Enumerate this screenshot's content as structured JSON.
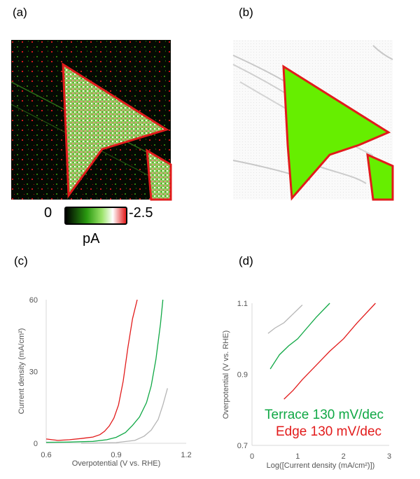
{
  "panels": {
    "a": {
      "label": "(a)"
    },
    "b": {
      "label": "(b)"
    },
    "c": {
      "label": "(c)"
    },
    "d": {
      "label": "(d)"
    }
  },
  "colorbar": {
    "min_label": "0",
    "max_label": "-2.5",
    "unit": "pA"
  },
  "colors": {
    "terrace": "#10a845",
    "edge": "#e21b1b",
    "reference": "#b5b5b5",
    "mask_fill": "#66ee00",
    "mask_outline": "#e21b1b"
  },
  "chart_data": [
    {
      "type": "line",
      "panel": "c",
      "xlabel": "Overpotential (V vs. RHE)",
      "ylabel": "Current density (mA/cm²)",
      "xlim": [
        0.6,
        1.2
      ],
      "ylim": [
        0,
        60
      ],
      "xticks": [
        0.6,
        0.9,
        1.2
      ],
      "yticks": [
        0,
        30,
        60
      ],
      "grid": false,
      "series": [
        {
          "color": "#e21b1b",
          "points": [
            [
              0.6,
              1.8
            ],
            [
              0.65,
              1.2
            ],
            [
              0.7,
              1.5
            ],
            [
              0.75,
              2.0
            ],
            [
              0.8,
              2.6
            ],
            [
              0.83,
              3.6
            ],
            [
              0.85,
              5.0
            ],
            [
              0.87,
              7.2
            ],
            [
              0.89,
              10.5
            ],
            [
              0.91,
              16
            ],
            [
              0.93,
              26
            ],
            [
              0.95,
              40
            ],
            [
              0.97,
              52
            ],
            [
              0.99,
              60
            ]
          ]
        },
        {
          "color": "#10a845",
          "points": [
            [
              0.6,
              0.4
            ],
            [
              0.7,
              0.5
            ],
            [
              0.8,
              0.8
            ],
            [
              0.86,
              1.5
            ],
            [
              0.9,
              2.5
            ],
            [
              0.94,
              4.5
            ],
            [
              0.97,
              7.5
            ],
            [
              1.0,
              11
            ],
            [
              1.03,
              17
            ],
            [
              1.05,
              24
            ],
            [
              1.07,
              35
            ],
            [
              1.09,
              50
            ],
            [
              1.1,
              60
            ]
          ]
        },
        {
          "color": "#b5b5b5",
          "points": [
            [
              0.75,
              0
            ],
            [
              0.9,
              0.3
            ],
            [
              0.98,
              1.2
            ],
            [
              1.02,
              3.0
            ],
            [
              1.05,
              5.5
            ],
            [
              1.08,
              10
            ],
            [
              1.1,
              16
            ],
            [
              1.12,
              23
            ]
          ]
        }
      ]
    },
    {
      "type": "line",
      "panel": "d",
      "xlabel": "Log([Current density (mA/cm²)])",
      "ylabel": "Overpotential (V vs. RHE)",
      "xlim": [
        0,
        3
      ],
      "ylim": [
        0.7,
        1.1
      ],
      "xticks": [
        0,
        1,
        2,
        3
      ],
      "yticks": [
        0.7,
        0.9,
        1.1
      ],
      "grid": false,
      "series": [
        {
          "color": "#b5b5b5",
          "points": [
            [
              0.35,
              1.015
            ],
            [
              0.5,
              1.03
            ],
            [
              0.7,
              1.045
            ],
            [
              0.9,
              1.07
            ],
            [
              1.1,
              1.095
            ]
          ]
        },
        {
          "color": "#10a845",
          "points": [
            [
              0.4,
              0.915
            ],
            [
              0.6,
              0.955
            ],
            [
              0.8,
              0.98
            ],
            [
              1.0,
              1.0
            ],
            [
              1.2,
              1.03
            ],
            [
              1.4,
              1.06
            ],
            [
              1.7,
              1.1
            ]
          ]
        },
        {
          "color": "#e21b1b",
          "points": [
            [
              0.7,
              0.83
            ],
            [
              0.9,
              0.855
            ],
            [
              1.1,
              0.885
            ],
            [
              1.4,
              0.925
            ],
            [
              1.7,
              0.965
            ],
            [
              2.0,
              1.0
            ],
            [
              2.3,
              1.045
            ],
            [
              2.7,
              1.1
            ]
          ]
        }
      ],
      "annotations": [
        {
          "text": "Terrace 130 mV/dec",
          "color": "#10a845"
        },
        {
          "text": "Edge 130 mV/dec",
          "color": "#e21b1b"
        }
      ]
    }
  ]
}
